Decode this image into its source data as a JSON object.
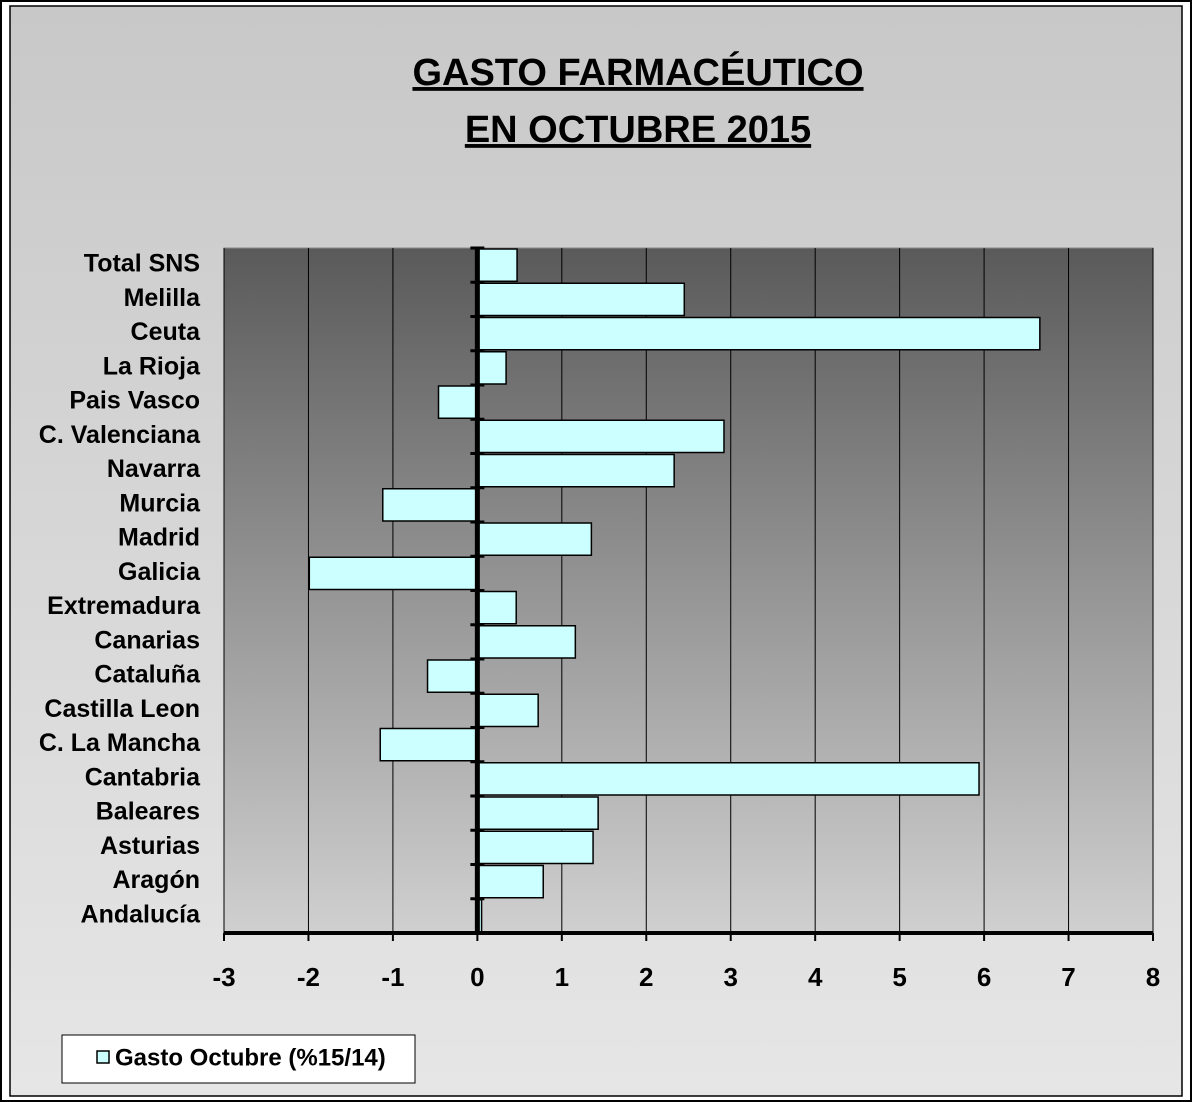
{
  "chart_data": {
    "type": "hbar",
    "title": [
      "GASTO FARMACÉUTICO",
      "EN OCTUBRE 2015"
    ],
    "categories": [
      "Total SNS",
      "Melilla",
      "Ceuta",
      "La Rioja",
      "Pais Vasco",
      "C. Valenciana",
      "Navarra",
      "Murcia",
      "Madrid",
      "Galicia",
      "Extremadura",
      "Canarias",
      "Cataluña",
      "Castilla Leon",
      "C. La Mancha",
      "Cantabria",
      "Baleares",
      "Asturias",
      "Aragón",
      "Andalucía"
    ],
    "series": [
      {
        "name": "Gasto Octubre (%15/14)",
        "color": "#ccffff",
        "values": [
          0.47,
          2.45,
          6.66,
          0.34,
          -0.46,
          2.92,
          2.33,
          -1.12,
          1.35,
          -1.99,
          0.46,
          1.16,
          -0.59,
          0.72,
          -1.15,
          5.94,
          1.43,
          1.37,
          0.78,
          0.05
        ]
      }
    ],
    "xlim": [
      -3,
      8
    ],
    "xticks": [
      -3,
      -2,
      -1,
      0,
      1,
      2,
      3,
      4,
      5,
      6,
      7,
      8
    ],
    "grid": true,
    "legend": "bottom-left"
  }
}
